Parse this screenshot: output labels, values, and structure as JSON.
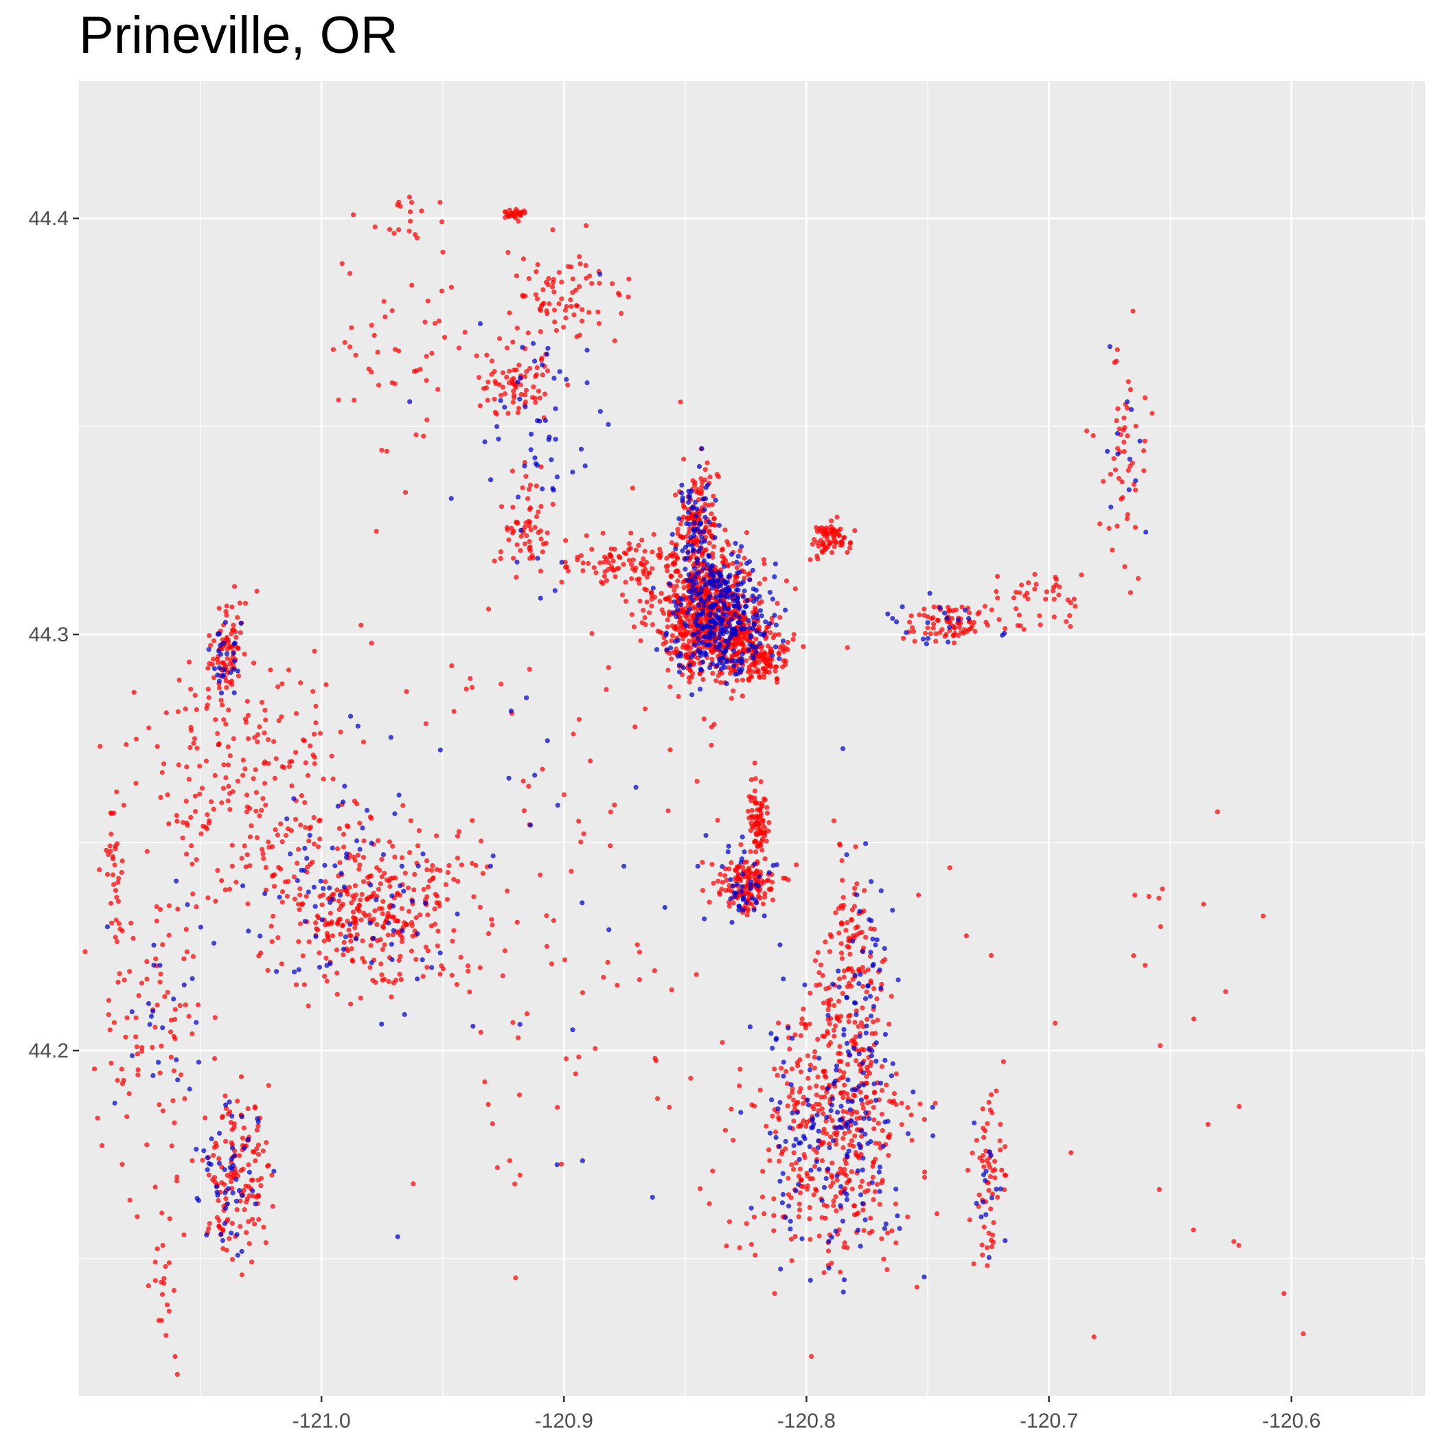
{
  "chart_data": {
    "type": "scatter",
    "title": "Prineville, OR",
    "xlabel": "",
    "ylabel": "",
    "xlim": [
      -121.1,
      -120.545
    ],
    "ylim": [
      44.117,
      44.433
    ],
    "x_ticks": [
      -121.0,
      -120.9,
      -120.8,
      -120.7,
      -120.6
    ],
    "x_tick_labels": [
      "-121.0",
      "-120.9",
      "-120.8",
      "-120.7",
      "-120.6"
    ],
    "y_ticks": [
      44.2,
      44.3,
      44.4
    ],
    "y_tick_labels": [
      "44.2",
      "44.3",
      "44.4"
    ],
    "grid": true,
    "legend": "none",
    "background": "#ebebeb",
    "series": [
      {
        "color": "#ff0000",
        "clusters": [
          {
            "center": [
              -120.84,
              44.305
            ],
            "spread": [
              0.02,
              0.014
            ],
            "n": 700
          },
          {
            "center": [
              -120.82,
              44.296
            ],
            "spread": [
              0.012,
              0.007
            ],
            "n": 160
          },
          {
            "center": [
              -120.845,
              44.326
            ],
            "spread": [
              0.008,
              0.012
            ],
            "n": 140
          },
          {
            "center": [
              -120.79,
              44.323
            ],
            "spread": [
              0.007,
              0.004
            ],
            "n": 70
          },
          {
            "center": [
              -120.875,
              44.317
            ],
            "spread": [
              0.02,
              0.006
            ],
            "n": 90
          },
          {
            "center": [
              -120.915,
              44.327
            ],
            "spread": [
              0.01,
              0.01
            ],
            "n": 60
          },
          {
            "center": [
              -120.92,
              44.36
            ],
            "spread": [
              0.015,
              0.008
            ],
            "n": 70
          },
          {
            "center": [
              -120.9,
              44.38
            ],
            "spread": [
              0.025,
              0.01
            ],
            "n": 80
          },
          {
            "center": [
              -120.92,
              44.401
            ],
            "spread": [
              0.004,
              0.001
            ],
            "n": 30
          },
          {
            "center": [
              -120.74,
              44.303
            ],
            "spread": [
              0.02,
              0.004
            ],
            "n": 80
          },
          {
            "center": [
              -120.7,
              44.309
            ],
            "spread": [
              0.02,
              0.005
            ],
            "n": 40
          },
          {
            "center": [
              -120.67,
              44.34
            ],
            "spread": [
              0.01,
              0.025
            ],
            "n": 50
          },
          {
            "center": [
              -120.825,
              44.24
            ],
            "spread": [
              0.012,
              0.006
            ],
            "n": 140
          },
          {
            "center": [
              -120.82,
              44.255
            ],
            "spread": [
              0.004,
              0.01
            ],
            "n": 80
          },
          {
            "center": [
              -120.79,
              44.18
            ],
            "spread": [
              0.03,
              0.03
            ],
            "n": 420
          },
          {
            "center": [
              -120.78,
              44.22
            ],
            "spread": [
              0.012,
              0.025
            ],
            "n": 120
          },
          {
            "center": [
              -120.725,
              44.17
            ],
            "spread": [
              0.006,
              0.018
            ],
            "n": 60
          },
          {
            "center": [
              -120.98,
              44.235
            ],
            "spread": [
              0.035,
              0.018
            ],
            "n": 320
          },
          {
            "center": [
              -121.03,
              44.265
            ],
            "spread": [
              0.04,
              0.03
            ],
            "n": 220
          },
          {
            "center": [
              -121.04,
              44.295
            ],
            "spread": [
              0.006,
              0.01
            ],
            "n": 80
          },
          {
            "center": [
              -121.035,
              44.17
            ],
            "spread": [
              0.012,
              0.018
            ],
            "n": 140
          },
          {
            "center": [
              -121.07,
              44.21
            ],
            "spread": [
              0.02,
              0.03
            ],
            "n": 90
          },
          {
            "center": [
              -120.965,
              44.37
            ],
            "spread": [
              0.03,
              0.025
            ],
            "n": 50
          },
          {
            "center": [
              -120.965,
              44.4
            ],
            "spread": [
              0.008,
              0.004
            ],
            "n": 14
          },
          {
            "center": [
              -120.9,
              44.24
            ],
            "spread": [
              0.08,
              0.08
            ],
            "n": 120
          },
          {
            "center": [
              -120.66,
              44.2
            ],
            "spread": [
              0.08,
              0.08
            ],
            "n": 30
          },
          {
            "center": [
              -121.085,
              44.245
            ],
            "spread": [
              0.004,
              0.012
            ],
            "n": 30
          },
          {
            "center": [
              -121.065,
              44.145
            ],
            "spread": [
              0.008,
              0.02
            ],
            "n": 25
          }
        ]
      },
      {
        "color": "#0000cc",
        "clusters": [
          {
            "center": [
              -120.835,
              44.305
            ],
            "spread": [
              0.018,
              0.013
            ],
            "n": 330
          },
          {
            "center": [
              -120.845,
              44.325
            ],
            "spread": [
              0.008,
              0.012
            ],
            "n": 70
          },
          {
            "center": [
              -120.825,
              44.24
            ],
            "spread": [
              0.01,
              0.008
            ],
            "n": 40
          },
          {
            "center": [
              -120.79,
              44.18
            ],
            "spread": [
              0.03,
              0.03
            ],
            "n": 160
          },
          {
            "center": [
              -120.775,
              44.215
            ],
            "spread": [
              0.01,
              0.025
            ],
            "n": 50
          },
          {
            "center": [
              -120.91,
              44.35
            ],
            "spread": [
              0.03,
              0.025
            ],
            "n": 50
          },
          {
            "center": [
              -120.99,
              44.235
            ],
            "spread": [
              0.035,
              0.02
            ],
            "n": 80
          },
          {
            "center": [
              -121.04,
              44.17
            ],
            "spread": [
              0.012,
              0.018
            ],
            "n": 50
          },
          {
            "center": [
              -121.04,
              44.295
            ],
            "spread": [
              0.006,
              0.01
            ],
            "n": 25
          },
          {
            "center": [
              -120.74,
              44.303
            ],
            "spread": [
              0.025,
              0.004
            ],
            "n": 20
          },
          {
            "center": [
              -120.67,
              44.34
            ],
            "spread": [
              0.012,
              0.03
            ],
            "n": 12
          },
          {
            "center": [
              -120.725,
              44.17
            ],
            "spread": [
              0.006,
              0.015
            ],
            "n": 15
          },
          {
            "center": [
              -121.07,
              44.215
            ],
            "spread": [
              0.02,
              0.03
            ],
            "n": 25
          },
          {
            "center": [
              -120.9,
              44.26
            ],
            "spread": [
              0.09,
              0.08
            ],
            "n": 40
          }
        ]
      }
    ]
  }
}
